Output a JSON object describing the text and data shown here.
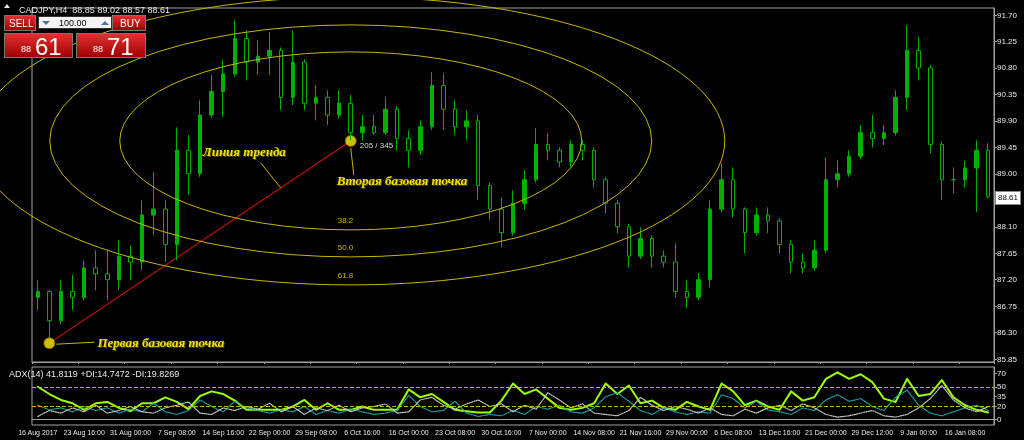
{
  "chart_data": [
    {
      "type": "candlestick",
      "title": "CADJPY,H4  88.85 89.02 88.57 88.61",
      "categories": [
        "16 Aug 2017",
        null,
        null,
        null,
        "23 Aug 16:00",
        null,
        null,
        null,
        "31 Aug 00:00",
        null,
        null,
        null,
        "7 Sep 08:00",
        null,
        null,
        null,
        "14 Sep 16:00",
        null,
        null,
        null,
        "22 Sep 00:00",
        null,
        null,
        null,
        "29 Sep 08:00",
        null,
        null,
        null,
        "6 Oct 16:00",
        null,
        null,
        null,
        "16 Oct 00:00",
        null,
        null,
        null,
        "23 Oct 08:00",
        null,
        null,
        null,
        "30 Oct 16:00",
        null,
        null,
        null,
        "7 Nov 00:00",
        null,
        null,
        null,
        "14 Nov 08:00",
        null,
        null,
        null,
        "21 Nov 16:00",
        null,
        null,
        null,
        "29 Nov 00:00",
        null,
        null,
        null,
        "6 Dec 08:00",
        null,
        null,
        null,
        "13 Dec 16:00",
        null,
        null,
        null,
        "21 Dec 00:00",
        null,
        null,
        null,
        "29 Dec 12:00",
        null,
        null,
        null,
        "9 Jan 00:00",
        null,
        null,
        null,
        "16 Jan 08:00",
        null,
        null
      ],
      "color": "#00b000",
      "ohlc": [
        [
          86.9,
          87.19,
          86.68,
          87.0
        ],
        [
          87.0,
          87.02,
          86.22,
          86.5
        ],
        [
          86.5,
          87.19,
          86.45,
          87.0
        ],
        [
          87.0,
          87.28,
          86.68,
          86.9
        ],
        [
          86.9,
          87.53,
          86.85,
          87.4
        ],
        [
          87.4,
          87.7,
          87.02,
          87.3
        ],
        [
          87.3,
          87.7,
          86.85,
          87.2
        ],
        [
          87.2,
          87.87,
          87.02,
          87.6
        ],
        [
          87.6,
          87.78,
          87.19,
          87.5
        ],
        [
          87.5,
          88.55,
          87.36,
          88.3
        ],
        [
          88.3,
          89.03,
          87.96,
          88.4
        ],
        [
          88.4,
          88.55,
          87.5,
          87.8
        ],
        [
          87.8,
          89.79,
          87.53,
          89.4
        ],
        [
          89.4,
          89.66,
          88.64,
          89.0
        ],
        [
          89.0,
          90.25,
          88.95,
          90.0
        ],
        [
          90.0,
          90.68,
          89.95,
          90.4
        ],
        [
          90.4,
          90.93,
          89.97,
          90.7
        ],
        [
          90.7,
          91.62,
          90.65,
          91.3
        ],
        [
          91.3,
          91.44,
          90.59,
          90.9
        ],
        [
          90.9,
          91.27,
          90.68,
          91.0
        ],
        [
          91.0,
          91.41,
          90.68,
          91.1
        ],
        [
          91.1,
          91.15,
          90.08,
          90.3
        ],
        [
          90.3,
          91.44,
          90.17,
          90.9
        ],
        [
          90.9,
          90.95,
          90.08,
          90.2
        ],
        [
          90.2,
          90.51,
          89.91,
          90.3
        ],
        [
          90.3,
          90.42,
          89.83,
          90.0
        ],
        [
          90.0,
          90.42,
          89.95,
          90.2
        ],
        [
          90.2,
          90.34,
          89.57,
          89.7
        ],
        [
          89.7,
          90.0,
          89.57,
          89.8
        ],
        [
          89.8,
          90.0,
          89.66,
          89.7
        ],
        [
          89.7,
          90.31,
          89.66,
          90.1
        ],
        [
          90.1,
          90.15,
          89.4,
          89.6
        ],
        [
          89.6,
          89.74,
          89.11,
          89.4
        ],
        [
          89.4,
          89.91,
          89.32,
          89.8
        ],
        [
          89.8,
          90.73,
          89.75,
          90.5
        ],
        [
          90.5,
          90.71,
          89.74,
          90.1
        ],
        [
          90.1,
          90.25,
          89.66,
          89.8
        ],
        [
          89.8,
          90.08,
          89.57,
          89.9
        ],
        [
          89.9,
          90.0,
          88.55,
          88.8
        ],
        [
          88.8,
          88.85,
          88.21,
          88.4
        ],
        [
          88.4,
          88.6,
          87.75,
          88.0
        ],
        [
          88.0,
          88.72,
          87.95,
          88.5
        ],
        [
          88.5,
          89.06,
          88.38,
          88.9
        ],
        [
          88.9,
          89.78,
          88.85,
          89.5
        ],
        [
          89.5,
          89.69,
          89.23,
          89.4
        ],
        [
          89.4,
          89.45,
          89.11,
          89.2
        ],
        [
          89.2,
          89.57,
          89.11,
          89.5
        ],
        [
          89.5,
          89.57,
          89.23,
          89.4
        ],
        [
          89.4,
          89.45,
          88.77,
          88.9
        ],
        [
          88.9,
          88.95,
          88.33,
          88.5
        ],
        [
          88.5,
          88.55,
          87.99,
          88.1
        ],
        [
          88.1,
          88.15,
          87.41,
          87.6
        ],
        [
          87.6,
          88.09,
          87.55,
          87.9
        ],
        [
          87.9,
          87.95,
          87.41,
          87.6
        ],
        [
          87.6,
          87.7,
          87.41,
          87.5
        ],
        [
          87.5,
          87.82,
          86.9,
          87.0
        ],
        [
          87.0,
          87.19,
          86.72,
          86.9
        ],
        [
          86.9,
          87.31,
          86.85,
          87.2
        ],
        [
          87.2,
          88.55,
          87.07,
          88.4
        ],
        [
          88.4,
          89.18,
          88.35,
          88.9
        ],
        [
          88.9,
          89.11,
          88.26,
          88.4
        ],
        [
          88.4,
          88.43,
          87.65,
          88.0
        ],
        [
          88.0,
          88.43,
          87.95,
          88.3
        ],
        [
          88.3,
          88.43,
          87.99,
          88.2
        ],
        [
          88.2,
          88.25,
          87.65,
          87.8
        ],
        [
          87.8,
          87.87,
          87.31,
          87.5
        ],
        [
          87.5,
          87.65,
          87.31,
          87.4
        ],
        [
          87.4,
          87.87,
          87.35,
          87.7
        ],
        [
          87.7,
          89.28,
          87.65,
          88.9
        ],
        [
          88.9,
          89.23,
          88.77,
          89.0
        ],
        [
          89.0,
          89.4,
          88.95,
          89.3
        ],
        [
          89.3,
          89.83,
          89.25,
          89.7
        ],
        [
          89.7,
          90.0,
          89.45,
          89.6
        ],
        [
          89.6,
          89.83,
          89.49,
          89.7
        ],
        [
          89.7,
          90.42,
          89.65,
          90.3
        ],
        [
          90.3,
          91.53,
          90.08,
          91.1
        ],
        [
          91.1,
          91.33,
          90.59,
          90.8
        ],
        [
          90.8,
          90.85,
          89.35,
          89.5
        ],
        [
          89.5,
          89.55,
          88.55,
          88.9
        ],
        [
          88.9,
          89.11,
          88.67,
          88.9
        ],
        [
          88.9,
          89.23,
          88.77,
          89.1
        ],
        [
          89.1,
          89.57,
          88.35,
          89.4
        ],
        [
          89.4,
          89.52,
          88.58,
          88.61
        ]
      ],
      "series": [
        {
          "type": "line",
          "color": "#d01010",
          "line_style": "dotted",
          "marker": "none",
          "values": [
            null,
            86.12,
            null,
            null,
            null,
            null,
            null,
            null,
            null,
            null,
            null,
            null,
            null,
            null,
            null,
            null,
            null,
            null,
            null,
            null,
            null,
            null,
            null,
            null,
            null,
            null,
            null,
            89.56,
            null,
            null,
            null,
            null,
            null,
            null,
            null,
            null,
            null,
            null,
            null,
            null,
            null,
            null,
            null,
            null,
            null,
            null,
            null,
            null,
            null,
            null,
            null,
            null,
            null,
            null,
            null,
            null,
            null,
            null,
            null,
            null,
            null,
            null,
            null,
            null,
            null,
            null,
            null,
            null,
            null,
            null,
            null,
            null,
            null,
            null,
            null,
            null,
            null,
            null,
            null,
            null,
            null,
            null,
            null
          ]
        },
        {
          "type": "scatter",
          "color": "#ffee00",
          "marker": "circle",
          "values": [
            null,
            86.12,
            null,
            null,
            null,
            null,
            null,
            null,
            null,
            null,
            null,
            null,
            null,
            null,
            null,
            null,
            null,
            null,
            null,
            null,
            null,
            null,
            null,
            null,
            null,
            null,
            null,
            89.56,
            null,
            null,
            null,
            null,
            null,
            null,
            null,
            null,
            null,
            null,
            null,
            null,
            null,
            null,
            null,
            null,
            null,
            null,
            null,
            null,
            null,
            null,
            null,
            null,
            null,
            null,
            null,
            null,
            null,
            null,
            null,
            null,
            null,
            null,
            null,
            null,
            null,
            null,
            null,
            null,
            null,
            null,
            null,
            null,
            null,
            null,
            null,
            null,
            null,
            null,
            null,
            null,
            null,
            null,
            null
          ]
        }
      ],
      "ylim": [
        85.8,
        91.82
      ],
      "yticks": [
        {
          "value": 85.85,
          "label": "85.85"
        },
        {
          "value": 86.3,
          "label": "86.30"
        },
        {
          "value": 86.75,
          "label": "86.75"
        },
        {
          "value": 87.2,
          "label": "87.20"
        },
        {
          "value": 87.65,
          "label": "87.65"
        },
        {
          "value": 88.1,
          "label": "88.10"
        },
        {
          "value": 88.55,
          "label": null
        },
        {
          "value": 89,
          "label": "89.00"
        },
        {
          "value": 89.45,
          "label": "89.45"
        },
        {
          "value": 89.9,
          "label": "89.90"
        },
        {
          "value": 90.35,
          "label": "90.35"
        },
        {
          "value": 90.8,
          "label": "90.80"
        },
        {
          "value": 91.25,
          "label": "91.25"
        },
        {
          "value": 91.7,
          "label": "91.70"
        }
      ],
      "annotations": [
        "Линия тренда",
        "Вторая базовая точка",
        "Первая базовая точка",
        "205 / 345",
        "38.2",
        "50.0",
        "61.8",
        {
          "text": "88.61",
          "y": 88.61
        },
        "SELL",
        "100.00",
        "BUY",
        "88",
        "61",
        "88",
        "71"
      ]
    },
    {
      "type": "line",
      "title": "ADX(14) 41.8119 +DI:14.7472 -DI:19.8269",
      "categories": [
        null,
        null,
        null,
        null,
        null,
        null,
        null,
        null,
        null,
        null,
        null,
        null,
        null,
        null,
        null,
        null,
        null,
        null,
        null,
        null,
        null,
        null,
        null,
        null,
        null,
        null,
        null,
        null,
        null,
        null,
        null,
        null,
        null,
        null,
        null,
        null,
        null,
        null,
        null,
        null,
        null,
        null,
        null,
        null,
        null,
        null,
        null,
        null,
        null,
        null,
        null,
        null,
        null,
        null,
        null,
        null,
        null,
        null,
        null,
        null,
        null,
        null,
        null,
        null,
        null,
        null,
        null,
        null,
        null,
        null,
        null,
        null,
        null,
        null,
        null,
        null,
        null,
        null,
        null,
        null,
        null,
        null,
        null
      ],
      "marker": "none",
      "tick_labels": "y",
      "series": [
        {
          "color": "#9cff00",
          "line_style": "solid",
          "values": [
            50,
            39,
            30,
            25,
            15,
            25,
            27,
            18,
            13,
            25,
            25,
            34,
            27,
            16,
            36,
            43,
            39,
            29,
            15,
            15,
            15,
            15,
            20,
            30,
            15,
            25,
            15,
            15,
            20,
            15,
            15,
            15,
            46,
            34,
            39,
            27,
            15,
            13,
            11,
            11,
            29,
            55,
            39,
            46,
            32,
            18,
            15,
            18,
            25,
            55,
            39,
            52,
            25,
            29,
            18,
            15,
            27,
            20,
            15,
            55,
            43,
            22,
            29,
            20,
            15,
            43,
            29,
            34,
            62,
            72,
            62,
            69,
            57,
            32,
            27,
            62,
            36,
            39,
            60,
            34,
            22,
            15,
            11
          ]
        },
        {
          "color": "#19a6b0",
          "line_style": "dotted",
          "values": [
            22,
            15,
            18,
            12,
            20,
            14,
            18,
            10,
            16,
            12,
            25,
            12,
            8,
            14,
            30,
            20,
            12,
            28,
            18,
            14,
            10,
            15,
            12,
            20,
            8,
            14,
            10,
            16,
            12,
            8,
            10,
            14,
            37,
            20,
            12,
            14,
            28,
            10,
            5,
            8,
            6,
            14,
            8,
            20,
            16,
            22,
            12,
            10,
            18,
            35,
            41,
            28,
            14,
            8,
            18,
            12,
            8,
            12,
            10,
            38,
            32,
            18,
            28,
            15,
            12,
            8,
            18,
            14,
            30,
            38,
            28,
            32,
            20,
            14,
            34,
            45,
            22,
            10,
            6,
            12,
            18,
            22,
            14
          ]
        },
        {
          "color": "#c8c8c8",
          "line_style": "dotted",
          "values": [
            5,
            14,
            10,
            18,
            12,
            22,
            10,
            14,
            20,
            12,
            10,
            18,
            22,
            27,
            10,
            8,
            18,
            14,
            20,
            16,
            25,
            12,
            20,
            8,
            18,
            14,
            22,
            12,
            18,
            20,
            24,
            10,
            12,
            30,
            34,
            22,
            16,
            24,
            30,
            20,
            24,
            12,
            22,
            16,
            41,
            30,
            18,
            24,
            10,
            8,
            6,
            14,
            34,
            22,
            14,
            20,
            16,
            10,
            18,
            8,
            6,
            16,
            10,
            18,
            22,
            14,
            24,
            18,
            8,
            4,
            6,
            10,
            14,
            6,
            4,
            8,
            18,
            32,
            52,
            30,
            18,
            12,
            20
          ]
        }
      ],
      "ylim": [
        -8,
        80
      ],
      "yticks": [
        0,
        20,
        35,
        50,
        70
      ],
      "ref_lines": [
        {
          "axis": "y",
          "value": 50,
          "color": "#c8b400",
          "line_style": "dashed"
        },
        {
          "axis": "y",
          "value": 20,
          "color": "#c8b400",
          "line_style": "dashed"
        }
      ]
    }
  ]
}
